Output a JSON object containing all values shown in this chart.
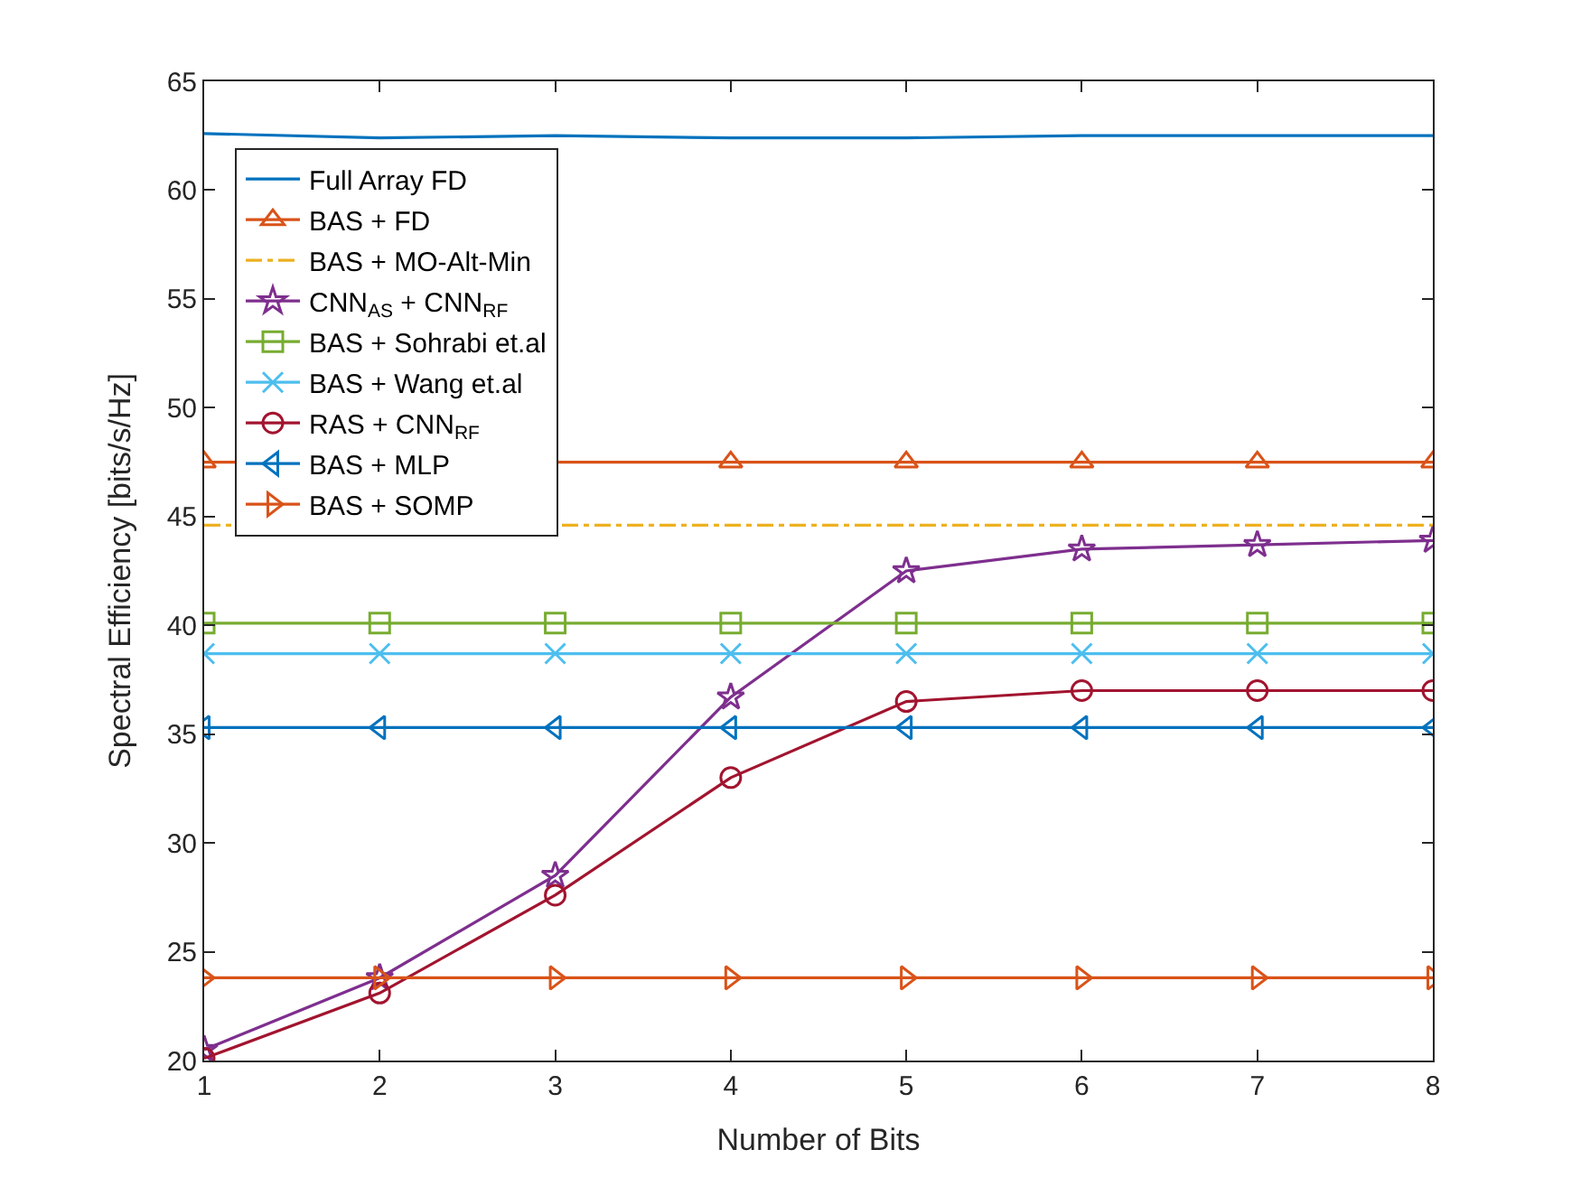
{
  "chart_data": {
    "type": "line",
    "xlabel": "Number of Bits",
    "ylabel": "Spectral Efficiency [bits/s/Hz]",
    "x": [
      1,
      2,
      3,
      4,
      5,
      6,
      7,
      8
    ],
    "xlim": [
      1,
      8
    ],
    "xticks": [
      1,
      2,
      3,
      4,
      5,
      6,
      7,
      8
    ],
    "ylim": [
      20,
      65
    ],
    "yticks": [
      20,
      25,
      30,
      35,
      40,
      45,
      50,
      55,
      60,
      65
    ],
    "grid": false,
    "legend": "top left",
    "series": [
      {
        "name": "Full Array FD",
        "color": "#0072bd",
        "marker": "none",
        "line_style": "solid",
        "values": [
          62.6,
          62.4,
          62.5,
          62.4,
          62.4,
          62.5,
          62.5,
          62.5
        ]
      },
      {
        "name": "BAS + FD",
        "color": "#d95319",
        "marker": "triangle-up",
        "line_style": "solid",
        "values": [
          47.5,
          null,
          null,
          47.5,
          47.5,
          47.5,
          47.5,
          47.5
        ]
      },
      {
        "name": "BAS + MO-Alt-Min",
        "color": "#edb120",
        "marker": "none",
        "line_style": "dashdot",
        "values": [
          44.6,
          null,
          44.6,
          44.6,
          44.6,
          44.6,
          44.6,
          44.6
        ]
      },
      {
        "name": "CNN$_{AS}$ + CNN$_{RF}$",
        "color": "#7e2f8e",
        "marker": "star",
        "line_style": "solid",
        "values": [
          20.5,
          23.8,
          28.5,
          36.7,
          42.5,
          43.5,
          43.7,
          43.9
        ]
      },
      {
        "name": "BAS + Sohrabi et.al",
        "color": "#77ac30",
        "marker": "square",
        "line_style": "solid",
        "values": [
          40.1,
          40.1,
          40.1,
          40.1,
          40.1,
          40.1,
          40.1,
          40.1
        ]
      },
      {
        "name": "BAS + Wang et.al",
        "color": "#4dbeee",
        "marker": "cross",
        "line_style": "solid",
        "values": [
          38.7,
          38.7,
          38.7,
          38.7,
          38.7,
          38.7,
          38.7,
          38.7
        ]
      },
      {
        "name": "RAS + CNN$_{RF}$",
        "color": "#a2142f",
        "marker": "circle",
        "line_style": "solid",
        "values": [
          20.1,
          23.1,
          27.6,
          33.0,
          36.5,
          37.0,
          37.0,
          37.0
        ]
      },
      {
        "name": "BAS + MLP",
        "color": "#0072bd",
        "marker": "triangle-left",
        "line_style": "solid",
        "values": [
          35.3,
          35.3,
          35.3,
          35.3,
          35.3,
          35.3,
          35.3,
          35.3
        ]
      },
      {
        "name": "BAS + SOMP",
        "color": "#d95319",
        "marker": "triangle-right",
        "line_style": "solid",
        "values": [
          23.8,
          23.8,
          23.8,
          23.8,
          23.8,
          23.8,
          23.8,
          23.8
        ]
      }
    ]
  }
}
